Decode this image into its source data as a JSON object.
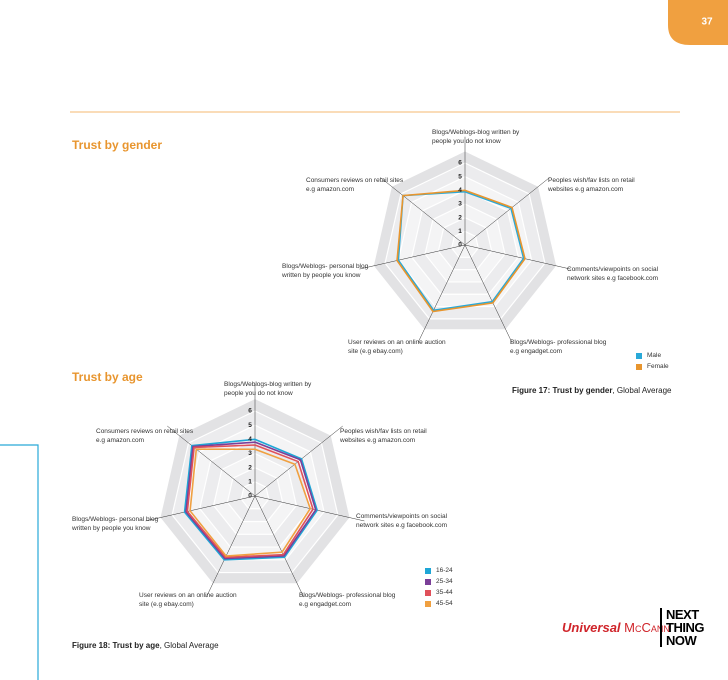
{
  "page_number": "37",
  "sections": [
    {
      "heading": "Trust by gender"
    },
    {
      "heading": "Trust by age"
    }
  ],
  "logos": {
    "universal": "Universal",
    "mccann": "McCann",
    "next_thing_now": [
      "NEXT",
      "THING",
      "NOW"
    ]
  },
  "chart_data": [
    {
      "type": "radar",
      "caption_label": "Figure 17: Trust by gender",
      "caption_text": ", Global Average",
      "categories": [
        "Blogs/Weblogs-blog written by people you do not know",
        "Peoples wish/fav lists on retail websites e.g amazon.com",
        "Comments/viewpoints on social network sites e.g facebook.com",
        "Blogs/Weblogs- professional blog e.g engadget.com",
        "User reviews on an online auction site (e.g ebay.com)",
        "Blogs/Weblogs- personal blog written by people you know",
        "Consumers reviews on retail sites e.g amazon.com"
      ],
      "ylim": [
        0,
        6
      ],
      "yticks": [
        0,
        1,
        2,
        3,
        4,
        5,
        6
      ],
      "grid": true,
      "legend": "bottom-right",
      "series": [
        {
          "name": "Male",
          "color": "#29a9d8",
          "values": [
            3.9,
            4.3,
            4.4,
            4.6,
            5.3,
            5.0,
            5.8
          ]
        },
        {
          "name": "Female",
          "color": "#e8952e",
          "values": [
            4.0,
            4.4,
            4.5,
            4.7,
            5.4,
            5.1,
            5.8
          ]
        }
      ]
    },
    {
      "type": "radar",
      "caption_label": "Figure 18: Trust by age",
      "caption_text": ", Global Average",
      "categories": [
        "Blogs/Weblogs-blog written by people you do not know",
        "Peoples wish/fav lists on retail websites e.g amazon.com",
        "Comments/viewpoints on social network sites e.g facebook.com",
        "Blogs/Weblogs- professional blog e.g engadget.com",
        "User reviews on an online auction site (e.g ebay.com)",
        "Blogs/Weblogs- personal blog written by people you know",
        "Consumers reviews on retail sites e.g amazon.com"
      ],
      "ylim": [
        0,
        6
      ],
      "yticks": [
        0,
        1,
        2,
        3,
        4,
        5,
        6
      ],
      "grid": true,
      "legend": "bottom-right",
      "series": [
        {
          "name": "16-24",
          "color": "#1ea6d6",
          "values": [
            4.0,
            4.2,
            4.5,
            4.8,
            5.0,
            5.1,
            5.7
          ]
        },
        {
          "name": "25-34",
          "color": "#7b3f98",
          "values": [
            3.8,
            4.1,
            4.4,
            4.7,
            4.9,
            5.0,
            5.6
          ]
        },
        {
          "name": "35-44",
          "color": "#e0505a",
          "values": [
            3.6,
            3.9,
            4.2,
            4.6,
            4.8,
            4.9,
            5.5
          ]
        },
        {
          "name": "45-54",
          "color": "#f0a040",
          "values": [
            3.3,
            3.6,
            4.0,
            4.4,
            4.7,
            4.7,
            5.3
          ]
        }
      ]
    }
  ]
}
